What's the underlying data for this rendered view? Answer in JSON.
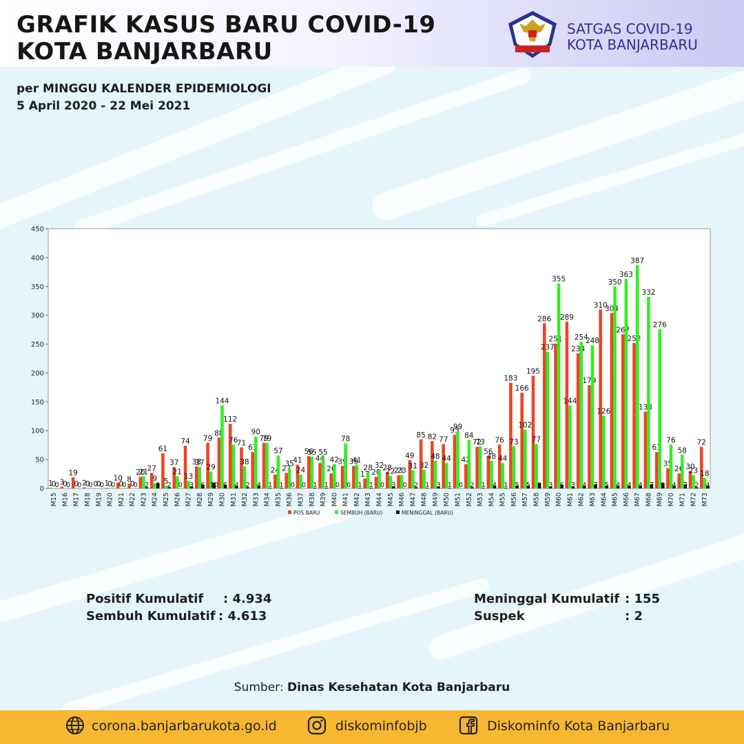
{
  "header": {
    "title_line1": "GRAFIK KASUS BARU COVID-19",
    "title_line2": "KOTA BANJARBARU",
    "subtitle_line1": "per MINGGU KALENDER EPIDEMIOLOGI",
    "subtitle_line2": "5 April 2020 - 22 Mei 2021",
    "org_line1": "SATGAS COVID-19",
    "org_line2": "KOTA BANJARBARU",
    "logo_icon": "satgas-garuda-logo"
  },
  "colors": {
    "pos": "#ee4422",
    "sembuh": "#33ee22",
    "meninggal": "#111111",
    "footer": "#f7b731",
    "org_text": "#2b3192"
  },
  "chart_data": {
    "type": "bar",
    "ylim": [
      0,
      450
    ],
    "yticks": [
      0,
      50,
      100,
      150,
      200,
      250,
      300,
      350,
      400,
      450
    ],
    "grid": false,
    "legend_position": "bottom-center",
    "categories": [
      "M15",
      "M16",
      "M17",
      "M18",
      "M19",
      "M20",
      "M21",
      "M22",
      "M23",
      "M24",
      "M25",
      "M26",
      "M27",
      "M28",
      "M29",
      "M30",
      "M31",
      "M32",
      "M33",
      "M34",
      "M35",
      "M36",
      "M37",
      "M38",
      "M39",
      "M40",
      "M41",
      "M42",
      "M43",
      "M44",
      "M45",
      "M46",
      "M47",
      "M48",
      "M49",
      "M50",
      "M51",
      "M52",
      "M53",
      "M54",
      "M55",
      "M56",
      "M57",
      "M58",
      "M59",
      "M60",
      "M61",
      "M62",
      "M63",
      "M64",
      "M65",
      "M66",
      "M67",
      "M68",
      "M69",
      "M70",
      "M71",
      "M72",
      "M73"
    ],
    "series": [
      {
        "name": "POS BARU",
        "color": "#ee4422",
        "values": [
          1,
          3,
          19,
          2,
          0,
          1,
          10,
          8,
          20,
          27,
          61,
          37,
          74,
          38,
          79,
          88,
          112,
          71,
          63,
          79,
          24,
          27,
          41,
          56,
          44,
          26,
          39,
          39,
          17,
          20,
          28,
          23,
          49,
          85,
          82,
          77,
          93,
          42,
          72,
          56,
          76,
          183,
          166,
          195,
          286,
          251,
          289,
          234,
          179,
          310,
          304,
          267,
          252,
          133,
          63,
          35,
          26,
          30,
          72
        ]
      },
      {
        "name": "SEMBUH (BARU)",
        "color": "#33ee22",
        "values": [
          0,
          0,
          0,
          0,
          0,
          0,
          0,
          0,
          21,
          9,
          5,
          21,
          13,
          37,
          29,
          144,
          76,
          38,
          90,
          79,
          57,
          35,
          24,
          55,
          55,
          42,
          78,
          41,
          28,
          32,
          22,
          23,
          31,
          32,
          48,
          44,
          99,
          84,
          73,
          48,
          44,
          73,
          102,
          77,
          237,
          355,
          144,
          254,
          248,
          126,
          350,
          363,
          387,
          332,
          276,
          76,
          58,
          23,
          18
        ]
      },
      {
        "name": "MENINGGAL (BARU)",
        "color": "#111111",
        "values": [
          0,
          0,
          0,
          0,
          0,
          0,
          0,
          0,
          2,
          9,
          2,
          0,
          3,
          6,
          10,
          6,
          4,
          2,
          4,
          1,
          1,
          0,
          0,
          1,
          1,
          0,
          0,
          1,
          1,
          0,
          3,
          0,
          2,
          1,
          3,
          1,
          0,
          2,
          1,
          4,
          1,
          5,
          5,
          9,
          3,
          6,
          3,
          4,
          7,
          5,
          4,
          4,
          4,
          7,
          9,
          4,
          7,
          2,
          4
        ]
      }
    ]
  },
  "stats": {
    "positif_label": "Positif Kumulatif",
    "positif_value": ": 4.934",
    "sembuh_label": "Sembuh Kumulatif",
    "sembuh_value": ": 4.613",
    "meninggal_label": "Meninggal Kumulatif",
    "meninggal_value": ":  155",
    "suspek_label": "Suspek",
    "suspek_value": ":  2"
  },
  "source": {
    "prefix": "Sumber: ",
    "name": "Dinas Kesehatan Kota Banjarbaru"
  },
  "footer": {
    "website": "corona.banjarbarukota.go.id",
    "website_icon": "globe-icon",
    "instagram": "diskominfobjb",
    "instagram_icon": "instagram-icon",
    "facebook": "Diskominfo Kota Banjarbaru",
    "facebook_icon": "facebook-icon"
  }
}
